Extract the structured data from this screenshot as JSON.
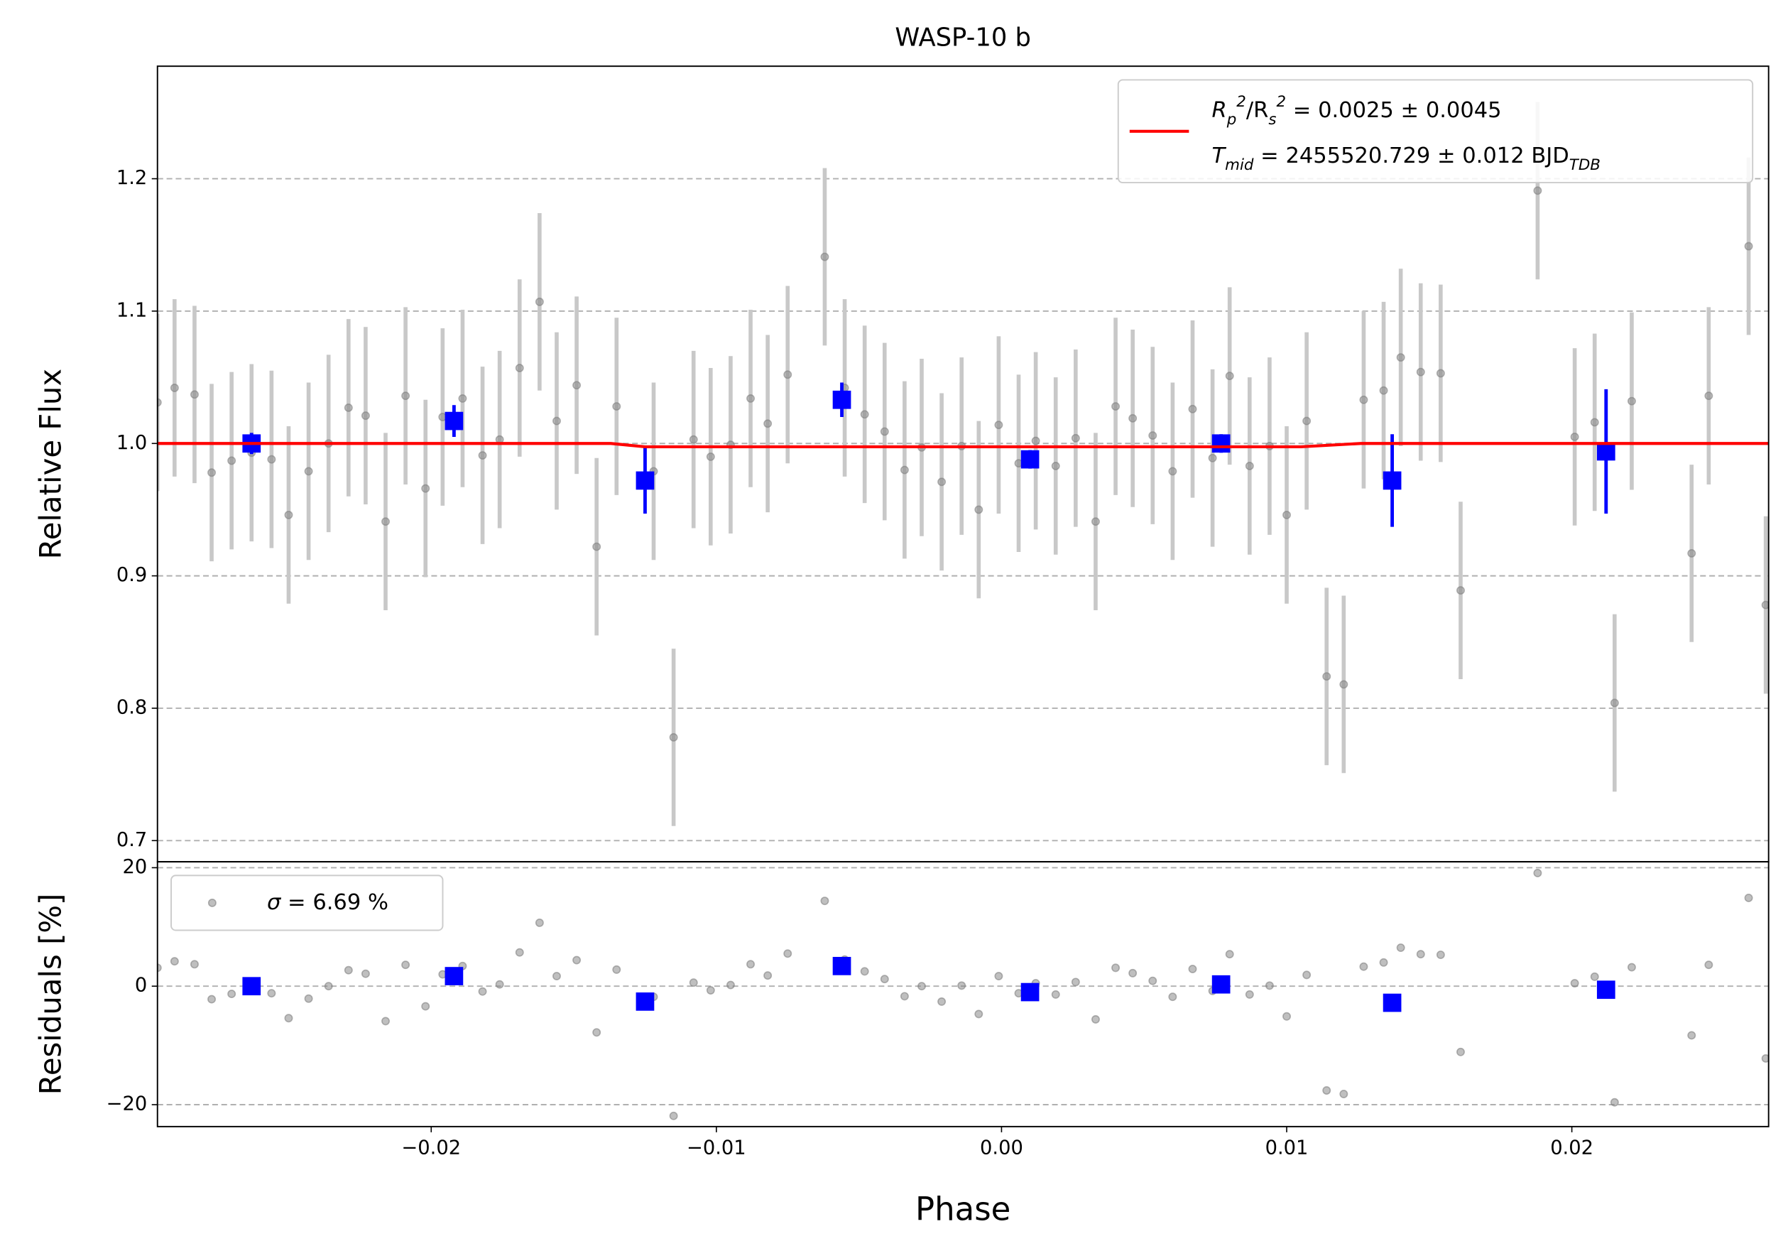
{
  "chart_data": [
    {
      "type": "errorbar",
      "title": "WASP-10 b",
      "ylabel": "Relative Flux",
      "xlim": [
        -0.0296,
        0.0269
      ],
      "ylim": [
        0.684,
        1.285
      ],
      "yticks": [
        0.7,
        0.8,
        0.9,
        {
          "value": 1,
          "label": "1.0"
        },
        1.1,
        1.2
      ],
      "grid": true,
      "legend": "upper right",
      "series": [
        {
          "kind": "points",
          "marker": "circle",
          "color": "#808080",
          "error_color": "#c8c8c8",
          "x": [
            -0.0296,
            -0.029,
            -0.0283,
            -0.0277,
            -0.027,
            -0.0263,
            -0.0256,
            -0.025,
            -0.0243,
            -0.0236,
            -0.0229,
            -0.0223,
            -0.0216,
            -0.0209,
            -0.0202,
            -0.0196,
            -0.0189,
            -0.0182,
            -0.0176,
            -0.0169,
            -0.0162,
            -0.0156,
            -0.0149,
            -0.0142,
            -0.0135,
            -0.0122,
            -0.0115,
            -0.0108,
            -0.0102,
            -0.0095,
            -0.0088,
            -0.0082,
            -0.0075,
            -0.0062,
            -0.0055,
            -0.0048,
            -0.0041,
            -0.0034,
            -0.0028,
            -0.0021,
            -0.0014,
            -0.0008,
            -0.0001,
            0.0006,
            0.0012,
            0.0019,
            0.0026,
            0.0033,
            0.004,
            0.0046,
            0.0053,
            0.006,
            0.0067,
            0.0074,
            0.008,
            0.0087,
            0.0094,
            0.01,
            0.0107,
            0.0114,
            0.012,
            0.0127,
            0.0134,
            0.014,
            0.0147,
            0.0154,
            0.0161,
            0.0188,
            0.0201,
            0.0208,
            0.0215,
            0.0221,
            0.0242,
            0.0248,
            0.0262,
            0.0268
          ],
          "values": [
            1.031,
            1.042,
            1.037,
            0.978,
            0.987,
            0.993,
            0.988,
            0.946,
            0.979,
            1.0,
            1.027,
            1.021,
            0.941,
            1.036,
            0.966,
            1.02,
            1.034,
            0.991,
            1.003,
            1.057,
            1.107,
            1.017,
            1.044,
            0.922,
            1.028,
            0.979,
            0.778,
            1.003,
            0.99,
            0.999,
            1.034,
            1.015,
            1.052,
            1.141,
            1.042,
            1.022,
            1.009,
            0.98,
            0.997,
            0.971,
            0.998,
            0.95,
            1.014,
            0.985,
            1.002,
            0.983,
            1.004,
            0.941,
            1.028,
            1.019,
            1.006,
            0.979,
            1.026,
            0.989,
            1.051,
            0.983,
            0.998,
            0.946,
            1.017,
            0.824,
            0.818,
            1.033,
            1.04,
            1.065,
            1.054,
            1.053,
            0.889,
            1.191,
            1.005,
            1.016,
            0.804,
            1.032,
            0.917,
            1.036,
            1.149,
            0.878
          ],
          "errors": [
            0.067,
            0.067,
            0.067,
            0.067,
            0.067,
            0.067,
            0.067,
            0.067,
            0.067,
            0.067,
            0.067,
            0.067,
            0.067,
            0.067,
            0.067,
            0.067,
            0.067,
            0.067,
            0.067,
            0.067,
            0.067,
            0.067,
            0.067,
            0.067,
            0.067,
            0.067,
            0.067,
            0.067,
            0.067,
            0.067,
            0.067,
            0.067,
            0.067,
            0.067,
            0.067,
            0.067,
            0.067,
            0.067,
            0.067,
            0.067,
            0.067,
            0.067,
            0.067,
            0.067,
            0.067,
            0.067,
            0.067,
            0.067,
            0.067,
            0.067,
            0.067,
            0.067,
            0.067,
            0.067,
            0.067,
            0.067,
            0.067,
            0.067,
            0.067,
            0.067,
            0.067,
            0.067,
            0.067,
            0.067,
            0.067,
            0.067,
            0.067,
            0.067,
            0.067,
            0.067,
            0.067,
            0.067,
            0.067,
            0.067,
            0.067,
            0.067
          ]
        },
        {
          "kind": "points",
          "marker": "square",
          "color": "#0000ff",
          "error_color": "#0000ff",
          "x": [
            -0.0263,
            -0.0192,
            -0.0125,
            -0.0056,
            0.001,
            0.0077,
            0.0137,
            0.0212
          ],
          "values": [
            1.0,
            1.017,
            0.972,
            1.033,
            0.988,
            1.0,
            0.972,
            0.994
          ],
          "errors": [
            0.008,
            0.012,
            0.025,
            0.013,
            0.007,
            0.007,
            0.035,
            0.047
          ]
        },
        {
          "kind": "line",
          "color": "#ff0000",
          "x": [
            -0.0296,
            -0.0137,
            -0.0125,
            0.0105,
            0.0126,
            0.0269
          ],
          "values": [
            1.0,
            1.0,
            0.9975,
            0.9975,
            1.0,
            1.0
          ],
          "label_lines": [
            [
              {
                "t": "R"
              },
              {
                "t": "p",
                "shift": "sub"
              },
              {
                "t": "2",
                "shift": "super"
              },
              {
                "t": "/R"
              },
              {
                "t": "s",
                "shift": "sub"
              },
              {
                "t": "2",
                "shift": "super"
              },
              {
                "t": " = 0.0025 ± 0.0045"
              }
            ],
            [
              {
                "t": "T"
              },
              {
                "t": "mid",
                "shift": "sub"
              },
              {
                "t": " = 2455520.729 ± 0.012 BJD"
              },
              {
                "t": "TDB",
                "shift": "sub"
              }
            ]
          ]
        }
      ]
    },
    {
      "type": "errorbar",
      "ylabel": "Residuals [%]",
      "xlabel": "Phase",
      "xlim": [
        -0.0296,
        0.0269
      ],
      "ylim": [
        -23.7,
        21.0
      ],
      "xticks": [
        {
          "value": -0.02,
          "label": "−0.02"
        },
        {
          "value": -0.01,
          "label": "−0.01"
        },
        {
          "value": 0,
          "label": "0.00"
        },
        0.01,
        0.02
      ],
      "yticks": [
        {
          "value": -20,
          "label": "−20"
        },
        0,
        20
      ],
      "grid": true,
      "legend": "upper left",
      "series": [
        {
          "kind": "points",
          "marker": "circle",
          "color": "#808080",
          "x": [
            -0.0296,
            -0.029,
            -0.0283,
            -0.0277,
            -0.027,
            -0.0263,
            -0.0256,
            -0.025,
            -0.0243,
            -0.0236,
            -0.0229,
            -0.0223,
            -0.0216,
            -0.0209,
            -0.0202,
            -0.0196,
            -0.0189,
            -0.0182,
            -0.0176,
            -0.0169,
            -0.0162,
            -0.0156,
            -0.0149,
            -0.0142,
            -0.0135,
            -0.0122,
            -0.0115,
            -0.0108,
            -0.0102,
            -0.0095,
            -0.0088,
            -0.0082,
            -0.0075,
            -0.0062,
            -0.0055,
            -0.0048,
            -0.0041,
            -0.0034,
            -0.0028,
            -0.0021,
            -0.0014,
            -0.0008,
            -0.0001,
            0.0006,
            0.0012,
            0.0019,
            0.0026,
            0.0033,
            0.004,
            0.0046,
            0.0053,
            0.006,
            0.0067,
            0.0074,
            0.008,
            0.0087,
            0.0094,
            0.01,
            0.0107,
            0.0114,
            0.012,
            0.0127,
            0.0134,
            0.014,
            0.0147,
            0.0154,
            0.0161,
            0.0188,
            0.0201,
            0.0208,
            0.0215,
            0.0221,
            0.0242,
            0.0248,
            0.0262,
            0.0268
          ],
          "values": [
            3.1,
            4.2,
            3.7,
            -2.2,
            -1.3,
            -0.7,
            -1.2,
            -5.4,
            -2.1,
            0.0,
            2.7,
            2.1,
            -5.9,
            3.6,
            -3.4,
            2.0,
            3.4,
            -0.9,
            0.3,
            5.7,
            10.7,
            1.7,
            4.4,
            -7.8,
            2.8,
            -1.8,
            -21.9,
            0.6,
            -0.7,
            0.2,
            3.7,
            1.8,
            5.5,
            14.4,
            4.5,
            2.5,
            1.2,
            -1.7,
            0.0,
            -2.6,
            0.1,
            -4.7,
            1.7,
            -1.2,
            0.5,
            -1.4,
            0.7,
            -5.6,
            3.1,
            2.2,
            0.9,
            -1.8,
            2.9,
            -0.8,
            5.4,
            -1.4,
            0.1,
            -5.1,
            1.9,
            -17.6,
            -18.2,
            3.3,
            4.0,
            6.5,
            5.4,
            5.3,
            -11.1,
            19.1,
            0.5,
            1.6,
            -19.6,
            3.2,
            -8.3,
            3.6,
            14.9,
            -12.2
          ],
          "label_lines": [
            [
              {
                "t": "σ"
              },
              {
                "t": " = 6.69 %"
              }
            ]
          ]
        },
        {
          "kind": "points",
          "marker": "square",
          "color": "#0000ff",
          "x": [
            -0.0263,
            -0.0192,
            -0.0125,
            -0.0056,
            0.001,
            0.0077,
            0.0137,
            0.0212
          ],
          "values": [
            0.0,
            1.7,
            -2.6,
            3.4,
            -1.0,
            0.3,
            -2.8,
            -0.6
          ]
        }
      ]
    }
  ]
}
